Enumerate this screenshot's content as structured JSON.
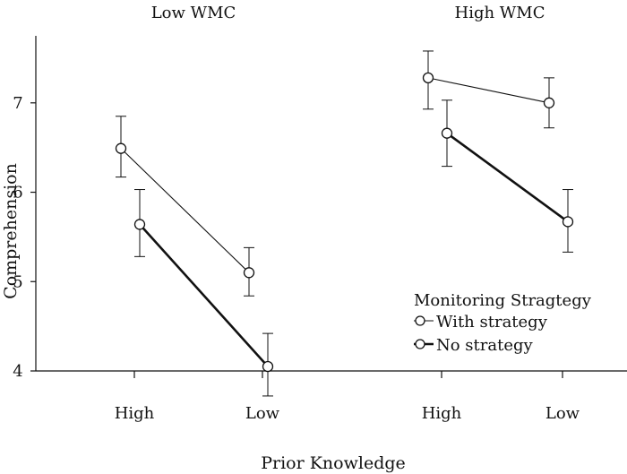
{
  "chart_data": {
    "type": "line",
    "panels": [
      {
        "title": "Low WMC",
        "categories": [
          "High",
          "Low"
        ],
        "series": [
          {
            "name": "With strategy",
            "values": [
              6.49,
              5.1
            ],
            "error_low": [
              6.17,
              4.84
            ],
            "error_high": [
              6.85,
              5.38
            ]
          },
          {
            "name": "No strategy",
            "values": [
              5.64,
              4.05
            ],
            "error_low": [
              5.28,
              3.72
            ],
            "error_high": [
              6.03,
              4.42
            ]
          }
        ]
      },
      {
        "title": "High WMC",
        "categories": [
          "High",
          "Low"
        ],
        "series": [
          {
            "name": "With strategy",
            "values": [
              7.28,
              7.0
            ],
            "error_low": [
              6.93,
              6.72
            ],
            "error_high": [
              7.58,
              7.28
            ]
          },
          {
            "name": "No strategy",
            "values": [
              6.66,
              5.67
            ],
            "error_low": [
              6.29,
              5.33
            ],
            "error_high": [
              7.03,
              6.03
            ]
          }
        ]
      }
    ],
    "xlabel": "Prior Knowledge",
    "ylabel": "Comprehension",
    "ylim": [
      4,
      7.75
    ],
    "yticks": [
      4,
      5,
      6,
      7
    ],
    "legend": {
      "title": "Monitoring Stragtegy",
      "entries": [
        "With strategy",
        "No strategy"
      ],
      "placement": "bottom-right"
    },
    "grid": false,
    "colors": {
      "line": "#111111",
      "marker_fill": "#ffffff"
    }
  }
}
